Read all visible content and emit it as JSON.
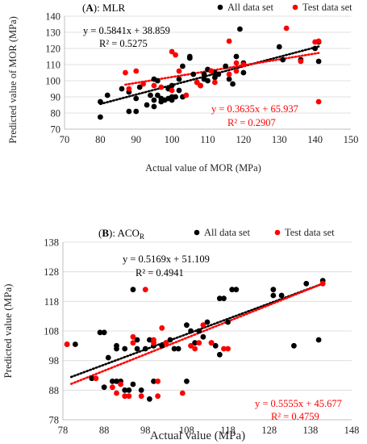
{
  "colors": {
    "all": "#000000",
    "test": "#ff0000"
  },
  "chart_data": [
    {
      "type": "scatter",
      "title_tag": "A",
      "title_text": "MLR",
      "xlabel": "Actual value of MOR (MPa)",
      "ylabel": "Predicted value of MOR (MPa)",
      "xlim": [
        70,
        150
      ],
      "ylim": [
        70,
        140
      ],
      "xticks": [
        "70",
        "80",
        "90",
        "100",
        "110",
        "120",
        "130",
        "140",
        "150"
      ],
      "yticks": [
        "70",
        "80",
        "90",
        "100",
        "110",
        "120",
        "130",
        "140"
      ],
      "legend": [
        "All data set",
        "Test data set"
      ],
      "grid": "horizontal",
      "series": [
        {
          "name": "All data set",
          "x": [
            80,
            80,
            82,
            86,
            88,
            88,
            90,
            90,
            91,
            93,
            94,
            95,
            95,
            96,
            97,
            97,
            98,
            99,
            100,
            100,
            101,
            102,
            102,
            103,
            103,
            105,
            105,
            106,
            107,
            108,
            109,
            109,
            110,
            110,
            111,
            112,
            113,
            115,
            116,
            117,
            118,
            119,
            120,
            120,
            130,
            131,
            136,
            140,
            141,
            141,
            95,
            96,
            99,
            100,
            112
          ],
          "y": [
            87,
            77.5,
            91,
            95,
            93,
            81,
            89,
            81,
            96,
            85,
            91,
            84,
            88,
            100,
            87,
            89,
            88,
            95,
            97,
            88,
            90,
            101,
            94,
            90,
            109,
            115,
            114,
            104,
            99,
            97,
            101,
            104,
            107,
            100,
            106,
            102,
            104,
            109,
            101,
            98,
            115,
            132,
            111,
            105,
            121,
            113,
            113,
            120,
            112,
            124,
            101,
            91,
            89,
            90,
            105
          ]
        },
        {
          "name": "Test data set",
          "x": [
            87,
            88,
            90,
            92,
            95,
            97,
            100,
            100,
            101,
            102,
            104,
            107,
            108,
            111,
            112,
            116,
            116,
            118,
            118,
            120,
            132,
            136,
            140,
            141,
            141
          ],
          "y": [
            105,
            95,
            106,
            98,
            97,
            96,
            118,
            94,
            116,
            106,
            91,
            99,
            97,
            106,
            99,
            124.5,
            104,
            111,
            106,
            110,
            132.5,
            112,
            124,
            87,
            124.5
          ]
        }
      ],
      "fits": [
        {
          "label": "All data set",
          "eq": "y = 0.5841x + 38.859",
          "r2": "R² = 0.5275",
          "slope": 0.5841,
          "intercept": 38.859,
          "range": [
            80,
            141
          ]
        },
        {
          "label": "Test data set",
          "eq": "y = 0.3635x + 65.937",
          "r2": "R² = 0.2907",
          "slope": 0.3635,
          "intercept": 65.937,
          "range": [
            87,
            141
          ]
        }
      ]
    },
    {
      "type": "scatter",
      "title_tag": "B",
      "title_text": "ACO",
      "title_sub": "R",
      "xlabel": "Actual value (MPa)",
      "ylabel": "Predicted value (MPa)",
      "xlim": [
        78,
        148
      ],
      "ylim": [
        78,
        138
      ],
      "xticks": [
        "78",
        "88",
        "98",
        "108",
        "118",
        "128",
        "138",
        "148"
      ],
      "yticks": [
        "78",
        "88",
        "98",
        "108",
        "118",
        "128",
        "138"
      ],
      "legend": [
        "All data set",
        "Test data set"
      ],
      "grid": "horizontal",
      "series": [
        {
          "name": "All data set",
          "x": [
            79,
            81,
            85,
            87,
            88,
            88,
            89,
            90,
            91,
            91,
            91,
            92,
            93,
            93,
            94,
            95,
            95,
            96,
            96,
            97,
            98,
            99,
            99,
            100,
            100,
            102,
            103,
            104,
            105,
            106,
            108,
            108,
            109,
            110,
            111,
            112,
            113,
            114,
            115,
            116,
            116,
            117,
            118,
            119,
            120,
            129,
            129,
            131,
            134,
            137,
            140,
            141
          ],
          "y": [
            103.5,
            103.5,
            92,
            107.5,
            107.5,
            89,
            99,
            91,
            102,
            103,
            91,
            91,
            88,
            102,
            88,
            122,
            90,
            105,
            102,
            88,
            102,
            85,
            105,
            103,
            91,
            103,
            104,
            105,
            102,
            102,
            91,
            110,
            108,
            104,
            108,
            106,
            111,
            104,
            103,
            100,
            119,
            119,
            111,
            122,
            122,
            122,
            120,
            120,
            103,
            124,
            105,
            125
          ]
        },
        {
          "name": "Test data set",
          "x": [
            79,
            86,
            90,
            91,
            92,
            93,
            94,
            95,
            95,
            97,
            98,
            100,
            100,
            101,
            101,
            102,
            103,
            107,
            109,
            110,
            111,
            112,
            114,
            117,
            118,
            141
          ],
          "y": [
            103.5,
            92,
            89,
            87,
            90,
            86,
            86,
            104,
            106,
            86,
            122,
            104,
            105,
            86,
            91,
            109,
            104,
            87,
            103,
            102,
            104,
            110,
            104,
            102,
            102,
            124
          ]
        }
      ],
      "fits": [
        {
          "label": "All data set",
          "eq": "y = 0.5169x + 51.109",
          "r2": "R² = 0.4941",
          "slope": 0.5169,
          "intercept": 51.109,
          "range": [
            80,
            141
          ]
        },
        {
          "label": "Test data set",
          "eq": "y = 0.5555x + 45.677",
          "r2": "R² = 0.4759",
          "slope": 0.5555,
          "intercept": 45.677,
          "range": [
            80,
            141
          ]
        }
      ]
    }
  ]
}
